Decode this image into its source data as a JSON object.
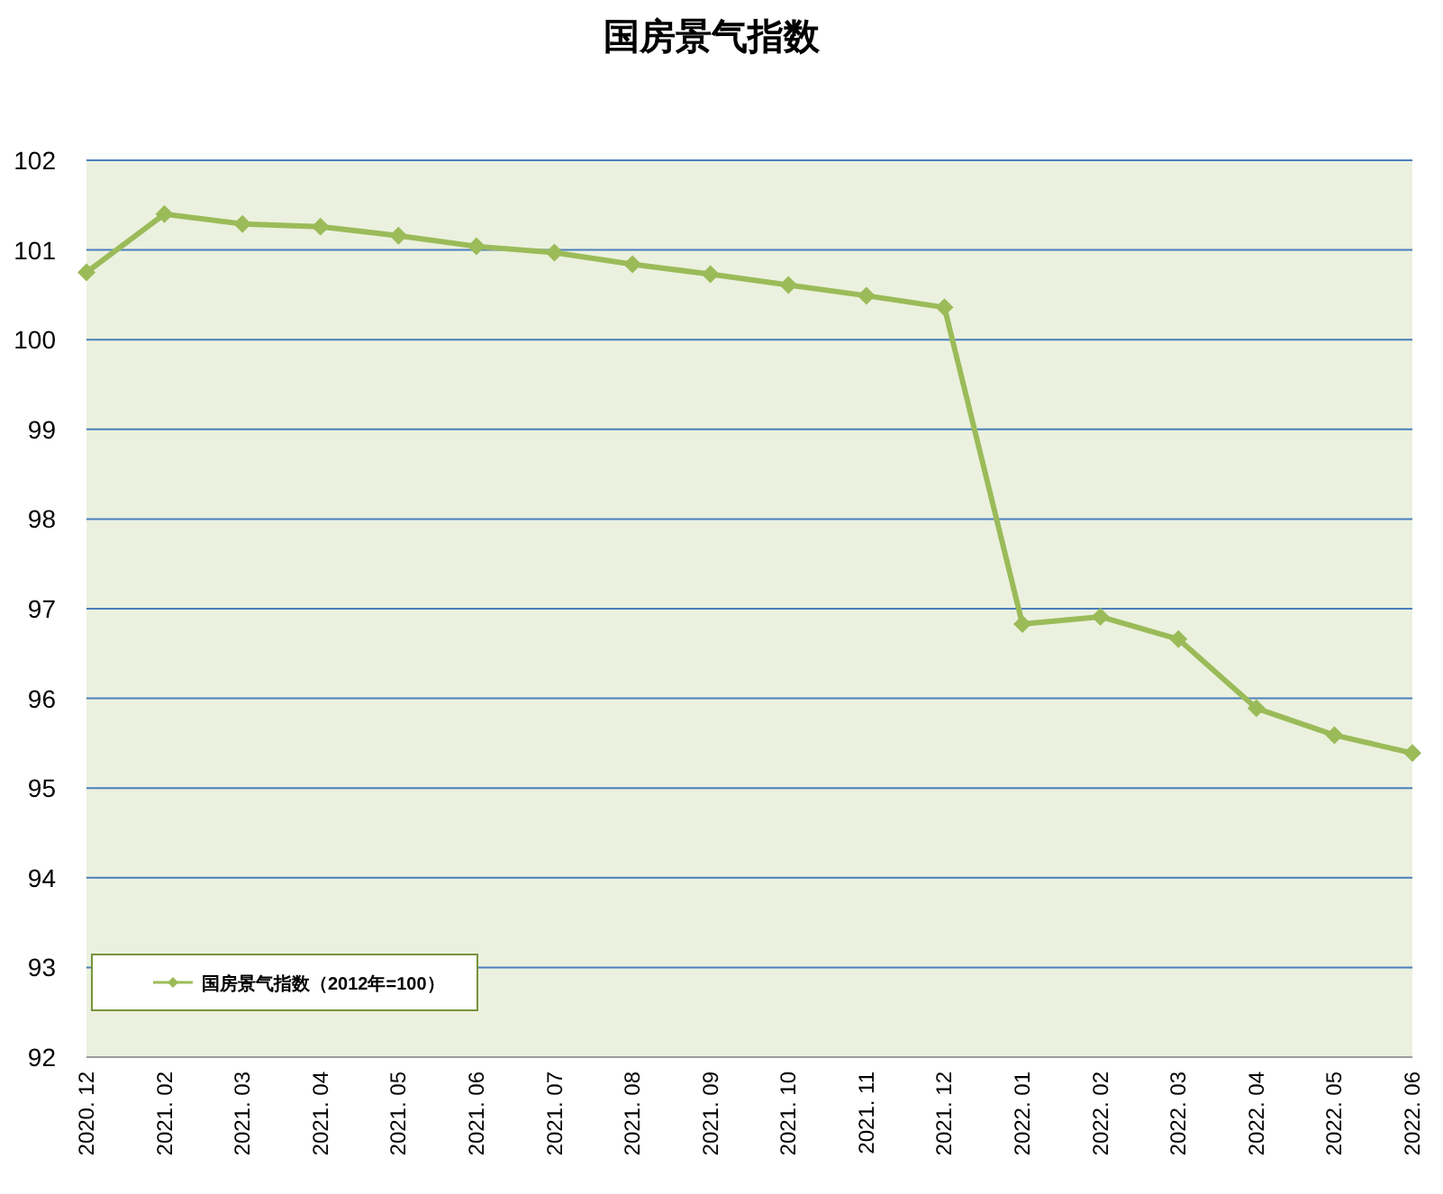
{
  "chart_data": {
    "type": "line",
    "title": "国房景气指数",
    "categories": [
      "2020. 12",
      "2021. 02",
      "2021. 03",
      "2021. 04",
      "2021. 05",
      "2021. 06",
      "2021. 07",
      "2021. 08",
      "2021. 09",
      "2021. 10",
      "2021. 11",
      "2021. 12",
      "2022. 01",
      "2022. 02",
      "2022. 03",
      "2022. 04",
      "2022. 05",
      "2022. 06"
    ],
    "series": [
      {
        "name": "国房景气指数（2012年=100）",
        "color": "#9bbb59",
        "values": [
          100.75,
          101.4,
          101.29,
          101.26,
          101.16,
          101.04,
          100.97,
          100.84,
          100.73,
          100.61,
          100.49,
          100.36,
          96.83,
          96.91,
          96.66,
          95.89,
          95.59,
          95.39
        ]
      }
    ],
    "ylim": [
      92,
      102
    ],
    "yticks": [
      92,
      93,
      94,
      95,
      96,
      97,
      98,
      99,
      100,
      101,
      102
    ],
    "grid": "y",
    "legend": "bottom left",
    "marker": "diamond",
    "line_style": "solid"
  }
}
